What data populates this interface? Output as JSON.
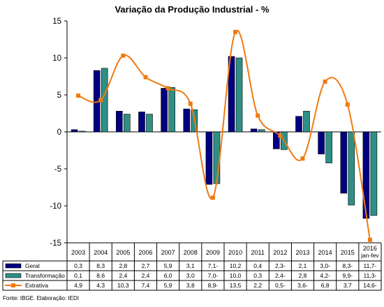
{
  "page": {
    "title": "Variação da Produção Industrial - %",
    "footer": "Fonte: IBGE. Elaboração: IEDI"
  },
  "colors": {
    "geral": "#000080",
    "transformacao": "#2f8f86",
    "extrativa": "#f07a10"
  },
  "chart_data": {
    "type": "bar",
    "title": "Variação da Produção Industrial - %",
    "categories": [
      "2003",
      "2004",
      "2005",
      "2006",
      "2007",
      "2008",
      "2009",
      "2010",
      "2011",
      "2012",
      "2013",
      "2014",
      "2015",
      "2016 jan-fev"
    ],
    "category_labels": [
      [
        "2003"
      ],
      [
        "2004"
      ],
      [
        "2005"
      ],
      [
        "2006"
      ],
      [
        "2007"
      ],
      [
        "2008"
      ],
      [
        "2009"
      ],
      [
        "2010"
      ],
      [
        "2011"
      ],
      [
        "2012"
      ],
      [
        "2013"
      ],
      [
        "2014"
      ],
      [
        "2015"
      ],
      [
        "2016",
        "jan-fev"
      ]
    ],
    "ylim": [
      -15,
      15
    ],
    "yticks": [
      -15,
      -10,
      -5,
      0,
      5,
      10,
      15
    ],
    "grid": false,
    "legend": "data-table",
    "series": [
      {
        "name": "Geral",
        "type": "bar",
        "values": [
          0.3,
          8.3,
          2.8,
          2.7,
          5.9,
          3.1,
          -7.1,
          10.2,
          0.4,
          -2.3,
          2.1,
          -3.0,
          -8.3,
          -11.7
        ],
        "labels": [
          "0,3",
          "8,3",
          "2,8",
          "2,7",
          "5,9",
          "3,1",
          "7,1-",
          "10,2",
          "0,4",
          "2,3-",
          "2,1",
          "3,0-",
          "8,3-",
          "11,7-"
        ]
      },
      {
        "name": "Transformação",
        "type": "bar",
        "values": [
          0.1,
          8.6,
          2.4,
          2.4,
          6.0,
          3.0,
          -7.0,
          10.0,
          0.3,
          -2.4,
          2.8,
          -4.2,
          -9.9,
          -11.3
        ],
        "labels": [
          "0,1",
          "8,6",
          "2,4",
          "2,4",
          "6,0",
          "3,0",
          "7,0-",
          "10,0",
          "0,3",
          "2,4-",
          "2,8",
          "4,2-",
          "9,9-",
          "11,3-"
        ]
      },
      {
        "name": "Extrativa",
        "type": "line",
        "values": [
          4.9,
          4.3,
          10.3,
          7.4,
          5.9,
          3.8,
          -8.9,
          13.5,
          2.2,
          -0.5,
          -3.6,
          6.8,
          3.7,
          -14.6
        ],
        "labels": [
          "4,9",
          "4,3",
          "10,3",
          "7,4",
          "5,9",
          "3,8",
          "8,9-",
          "13,5",
          "2,2",
          "0,5-",
          "3,6-",
          "6,8",
          "3,7",
          "14,6-"
        ]
      }
    ]
  }
}
